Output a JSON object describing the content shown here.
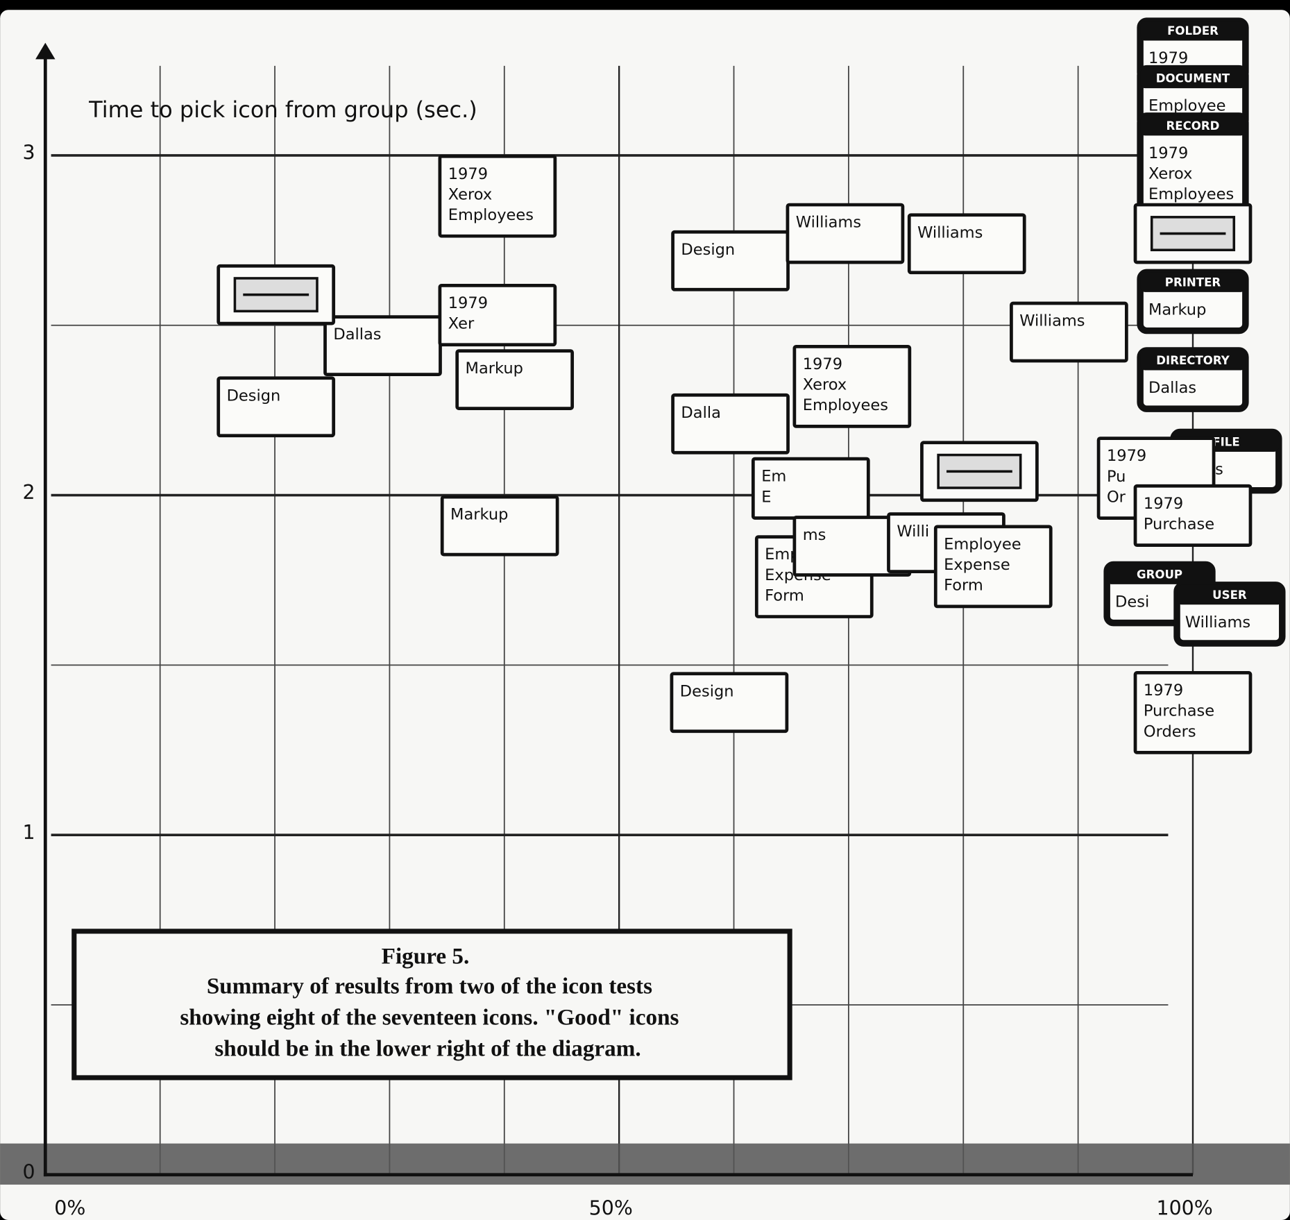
{
  "chart_data": {
    "type": "scatter",
    "y_label": "Time to pick icon from group (sec.)",
    "caption": [
      "Figure 5.",
      "Summary of results from two of the icon tests",
      "showing eight of the seventeen icons. \"Good\" icons",
      "should be in the lower right of the diagram."
    ],
    "xlim": [
      0,
      100
    ],
    "ylim": [
      0,
      3.3
    ],
    "xticks": [
      {
        "value": 0,
        "label": "0%"
      },
      {
        "value": 50,
        "label": "50%"
      },
      {
        "value": 100,
        "label": "100%"
      }
    ],
    "yticks": [
      0,
      1,
      2,
      3
    ],
    "xgrid_minor": [
      10,
      20,
      30,
      40,
      60,
      70,
      80,
      90
    ],
    "ygrid_minor": [
      0.5,
      1.5,
      2.5
    ],
    "grid": true,
    "x": [
      20.1,
      29.4,
      20.1,
      39.4,
      39.4,
      40.9,
      39.6,
      59.7,
      69.7,
      80.3,
      89.2,
      59.7,
      70.3,
      66.7,
      67.0,
      70.3,
      81.4,
      78.5,
      82.6,
      59.6,
      100,
      100,
      100,
      100,
      100,
      100,
      102.9,
      96.8,
      100,
      97.1,
      103.2,
      100
    ],
    "values": [
      2.26,
      2.44,
      2.59,
      2.88,
      2.53,
      2.34,
      1.91,
      2.69,
      2.77,
      2.74,
      2.48,
      2.21,
      2.32,
      2.02,
      1.76,
      1.85,
      2.07,
      1.86,
      1.79,
      1.39,
      3.31,
      3.17,
      2.97,
      2.77,
      2.57,
      2.34,
      2.1,
      2.05,
      1.94,
      1.71,
      1.65,
      1.36
    ],
    "point_titles": [
      null,
      null,
      null,
      null,
      null,
      null,
      null,
      null,
      null,
      null,
      null,
      null,
      null,
      null,
      null,
      null,
      null,
      null,
      null,
      null,
      "FOLDER",
      "DOCUMENT",
      "RECORD",
      null,
      "PRINTER",
      "DIRECTORY",
      "FILE",
      null,
      null,
      "GROUP",
      "USER",
      null
    ],
    "point_labels": [
      [
        "Design"
      ],
      [
        "Dallas"
      ],
      [],
      [
        "1979",
        "Xerox",
        "Employees"
      ],
      [
        "1979",
        "Xer"
      ],
      [
        "Markup"
      ],
      [
        "Markup"
      ],
      [
        "Design"
      ],
      [
        "Williams"
      ],
      [
        "Williams"
      ],
      [
        "Williams"
      ],
      [
        "Dalla"
      ],
      [
        "1979",
        "Xerox",
        "Employees"
      ],
      [
        "Em",
        "E"
      ],
      [
        "Employee",
        "Expense",
        "Form"
      ],
      [
        "ms"
      ],
      [],
      [
        "Willi"
      ],
      [
        "Employee",
        "Expense",
        "Form"
      ],
      [
        "Design"
      ],
      [
        "1979"
      ],
      [
        "Employee"
      ],
      [
        "1979",
        "Xerox",
        "Employees"
      ],
      [],
      [
        "Markup"
      ],
      [
        "Dallas"
      ],
      [
        "liams"
      ],
      [
        "1979",
        "Pu",
        "Or"
      ],
      [
        "1979",
        "Purchase"
      ],
      [
        "Desi"
      ],
      [
        "Williams"
      ],
      [
        "1979",
        "Purchase",
        "Orders"
      ]
    ],
    "color": "#111111"
  }
}
